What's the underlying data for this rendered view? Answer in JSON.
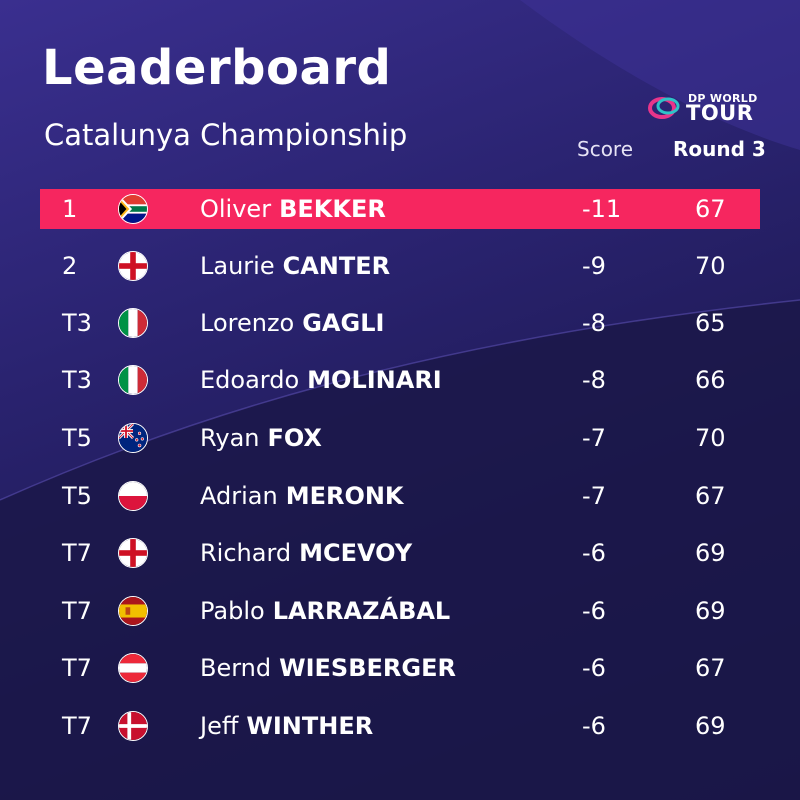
{
  "header": {
    "title": "Leaderboard",
    "subtitle": "Catalunya Championship",
    "score_label": "Score",
    "round_label": "Round 3"
  },
  "logo": {
    "line1": "DP WORLD",
    "line2": "TOUR"
  },
  "colors": {
    "background": "#2a2370",
    "leader_highlight": "#f6265f",
    "text": "#ffffff"
  },
  "rows": [
    {
      "pos": "1",
      "flag": "south-africa-flag-icon",
      "first": "Oliver",
      "last": "BEKKER",
      "score": "-11",
      "round": "67"
    },
    {
      "pos": "2",
      "flag": "england-flag-icon",
      "first": "Laurie",
      "last": "CANTER",
      "score": "-9",
      "round": "70"
    },
    {
      "pos": "T3",
      "flag": "italy-flag-icon",
      "first": "Lorenzo",
      "last": "GAGLI",
      "score": "-8",
      "round": "65"
    },
    {
      "pos": "T3",
      "flag": "italy-flag-icon",
      "first": "Edoardo",
      "last": "MOLINARI",
      "score": "-8",
      "round": "66"
    },
    {
      "pos": "T5",
      "flag": "new-zealand-flag-icon",
      "first": "Ryan",
      "last": "FOX",
      "score": "-7",
      "round": "70"
    },
    {
      "pos": "T5",
      "flag": "poland-flag-icon",
      "first": "Adrian",
      "last": "MERONK",
      "score": "-7",
      "round": "67"
    },
    {
      "pos": "T7",
      "flag": "england-flag-icon",
      "first": "Richard",
      "last": "MCEVOY",
      "score": "-6",
      "round": "69"
    },
    {
      "pos": "T7",
      "flag": "spain-flag-icon",
      "first": "Pablo",
      "last": "LARRAZÁBAL",
      "score": "-6",
      "round": "69"
    },
    {
      "pos": "T7",
      "flag": "austria-flag-icon",
      "first": "Bernd",
      "last": "WIESBERGER",
      "score": "-6",
      "round": "67"
    },
    {
      "pos": "T7",
      "flag": "denmark-flag-icon",
      "first": "Jeff",
      "last": "WINTHER",
      "score": "-6",
      "round": "69"
    }
  ]
}
